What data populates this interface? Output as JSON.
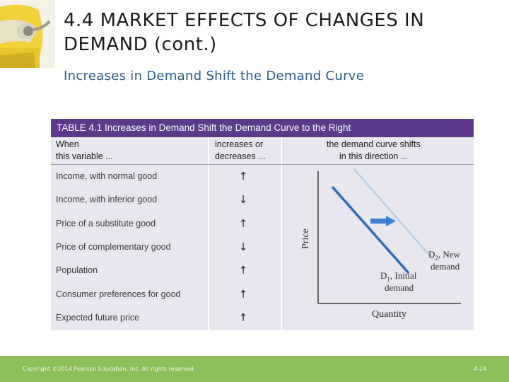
{
  "slide": {
    "title": "4.4 MARKET EFFECTS OF CHANGES IN DEMAND (cont.)",
    "subtitle": "Increases in Demand Shift the Demand Curve"
  },
  "table": {
    "caption": "TABLE 4.1  Increases in Demand Shift the Demand Curve to the Right",
    "col1_head": [
      "When",
      "this variable ..."
    ],
    "col2_head": [
      "increases or",
      "decreases ..."
    ],
    "col3_head": [
      "the demand curve shifts",
      "in this direction ..."
    ],
    "rows": [
      {
        "variable": "Income, with normal good",
        "arrow": "↑",
        "direction": "increases"
      },
      {
        "variable": "Income, with inferior good",
        "arrow": "↓",
        "direction": "decreases"
      },
      {
        "variable": "Price of a substitute good",
        "arrow": "↑",
        "direction": "increases"
      },
      {
        "variable": "Price of complementary good",
        "arrow": "↓",
        "direction": "decreases"
      },
      {
        "variable": "Population",
        "arrow": "↑",
        "direction": "increases"
      },
      {
        "variable": "Consumer preferences for good",
        "arrow": "↑",
        "direction": "increases"
      },
      {
        "variable": "Expected future price",
        "arrow": "↑",
        "direction": "increases"
      }
    ]
  },
  "graph": {
    "y_label": "Price",
    "x_label": "Quantity",
    "d1_label_name": "D",
    "d1_label_sub": "1",
    "d1_label_rest": ", Initial",
    "d1_label_line2": "demand",
    "d2_label_name": "D",
    "d2_label_sub": "2",
    "d2_label_rest": ", New",
    "d2_label_line2": "demand",
    "d1_color": "#2f6db5",
    "d2_color": "#b9cde6",
    "shift_arrow_color": "#3d7fd0",
    "shift_direction": "right"
  },
  "footer": {
    "copyright": "Copyright ©2014 Pearson Education, Inc. All rights reserved.",
    "page_number": "4-24"
  }
}
